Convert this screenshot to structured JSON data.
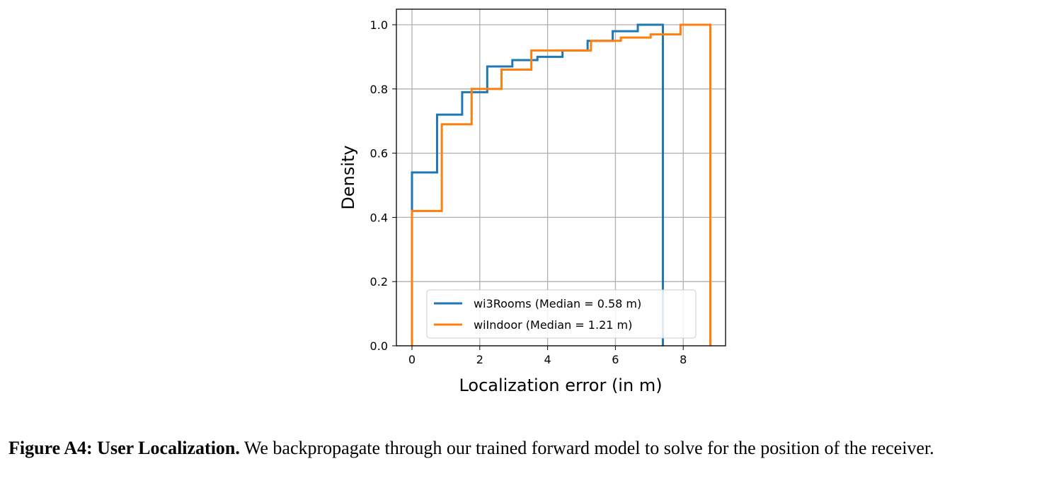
{
  "chart_data": {
    "type": "line",
    "step": true,
    "xlabel": "Localization error (in m)",
    "ylabel": "Density",
    "xlim": [
      -0.5,
      9.1
    ],
    "ylim": [
      0,
      1.05
    ],
    "xticks": [
      "0",
      "2",
      "4",
      "6",
      "8"
    ],
    "yticks": [
      "0.0",
      "0.2",
      "0.4",
      "0.6",
      "0.8",
      "1.0"
    ],
    "grid": true,
    "legend_position": "lower-right",
    "series": [
      {
        "name": "wi3Rooms (Median = 0.58 m)",
        "color": "#1f77b4",
        "edges": [
          0,
          0.74,
          1.48,
          2.22,
          2.96,
          3.7,
          4.44,
          5.18,
          5.92,
          6.66,
          7.4
        ],
        "values": [
          0.54,
          0.72,
          0.79,
          0.87,
          0.89,
          0.9,
          0.92,
          0.95,
          0.98,
          1.0
        ]
      },
      {
        "name": "wiIndoor (Median = 1.21 m)",
        "color": "#ff7f0e",
        "edges": [
          0,
          0.88,
          1.76,
          2.64,
          3.52,
          4.4,
          5.28,
          6.16,
          7.04,
          7.92,
          8.8
        ],
        "values": [
          0.42,
          0.69,
          0.8,
          0.86,
          0.92,
          0.92,
          0.95,
          0.96,
          0.97,
          1.0
        ]
      }
    ]
  },
  "caption": {
    "label": "Figure A4: User Localization.",
    "text": " We backpropagate through our trained forward model to solve for the position of the receiver."
  }
}
